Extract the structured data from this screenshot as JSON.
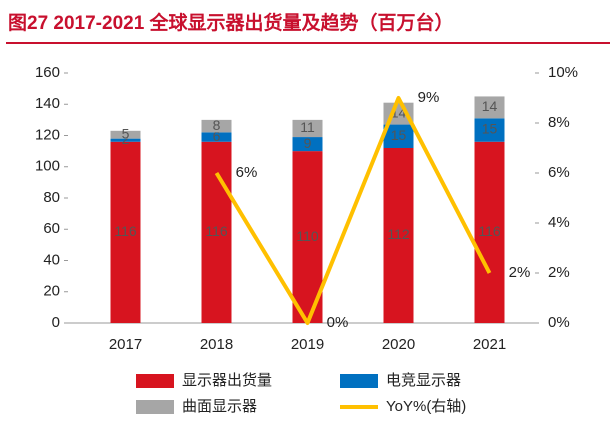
{
  "chart_data": {
    "type": "bar",
    "stacked": true,
    "title": "图27  2017-2021 全球显示器出货量及趋势（百万台）",
    "categories": [
      "2017",
      "2018",
      "2019",
      "2020",
      "2021"
    ],
    "series": [
      {
        "name": "显示器出货量",
        "color": "#d7141f",
        "values": [
          116,
          116,
          110,
          112,
          116
        ]
      },
      {
        "name": "电竞显示器",
        "color": "#0070c0",
        "values": [
          2,
          6,
          9,
          15,
          15
        ]
      },
      {
        "name": "曲面显示器",
        "color": "#a6a6a6",
        "values": [
          5,
          8,
          11,
          14,
          14
        ]
      },
      {
        "name": "YoY%(右轴)",
        "color": "#ffc000",
        "type": "line",
        "axis": "y2",
        "values": [
          null,
          6,
          0,
          9,
          2
        ],
        "value_labels": [
          null,
          "6%",
          "0%",
          "9%",
          "2%"
        ]
      }
    ],
    "ylim": [
      0,
      160
    ],
    "yticks": [
      0,
      20,
      40,
      60,
      80,
      100,
      120,
      140,
      160
    ],
    "y2lim": [
      0,
      10
    ],
    "y2ticks": [
      {
        "value": 0,
        "label": "0%"
      },
      {
        "value": 2,
        "label": "2%"
      },
      {
        "value": 4,
        "label": "4%"
      },
      {
        "value": 6,
        "label": "6%"
      },
      {
        "value": 8,
        "label": "8%"
      },
      {
        "value": 10,
        "label": "10%"
      }
    ],
    "grid": false
  }
}
